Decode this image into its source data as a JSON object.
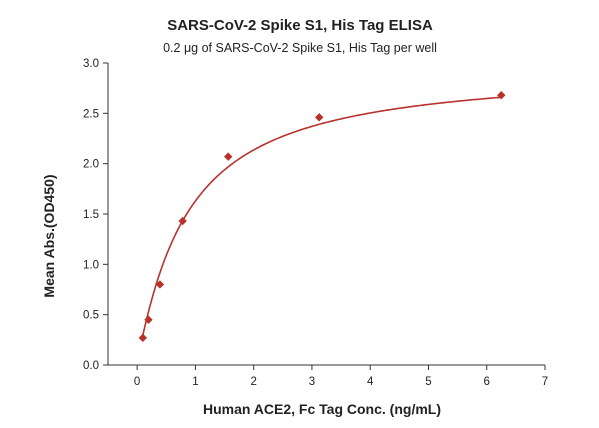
{
  "chart_data": {
    "type": "scatter",
    "title": "SARS-CoV-2 Spike S1, His Tag ELISA",
    "subtitle": "0.2 μg of SARS-CoV-2 Spike S1, His Tag per well",
    "xlabel": "Human ACE2, Fc Tag Conc. (ng/mL)",
    "ylabel": "Mean Abs.(OD450)",
    "xlim": [
      -0.5,
      7
    ],
    "ylim": [
      0,
      3
    ],
    "xticks": [
      0,
      1,
      2,
      3,
      4,
      5,
      6,
      7
    ],
    "xtick_labels": [
      "0",
      "1",
      "2",
      "3",
      "4",
      "5",
      "6",
      "7"
    ],
    "yticks": [
      0,
      0.5,
      1,
      1.5,
      2,
      2.5,
      3
    ],
    "ytick_labels": [
      "0.0",
      "0.5",
      "1.0",
      "1.5",
      "2.0",
      "2.5",
      "3.0"
    ],
    "grid": false,
    "legend": "none",
    "marker": "diamond",
    "series": [
      {
        "x": [
          0.098,
          0.195,
          0.391,
          0.781,
          1.563,
          3.125,
          6.25
        ],
        "y": [
          0.27,
          0.45,
          0.8,
          1.43,
          2.07,
          2.46,
          2.68
        ]
      }
    ],
    "fit_curve": {
      "model": "four-parameter logistic",
      "bottom": 0.05,
      "top": 2.95,
      "ec50": 0.85,
      "hill": 1.1,
      "x_range": [
        0.098,
        6.25
      ]
    },
    "colors": {
      "series": "#b8322c",
      "axis": "#333333",
      "text": "#222222"
    }
  }
}
